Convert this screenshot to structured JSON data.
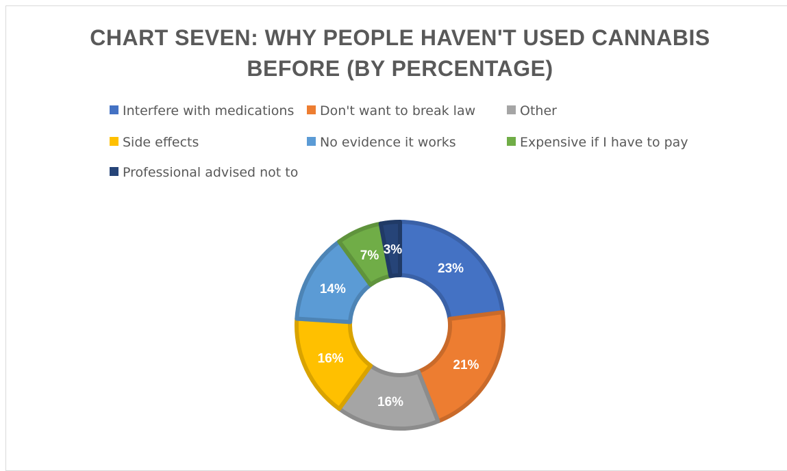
{
  "chart_data": {
    "type": "pie",
    "variant": "doughnut",
    "title_lines": [
      "CHART SEVEN: WHY PEOPLE HAVEN'T USED CANNABIS",
      "BEFORE (BY PERCENTAGE)"
    ],
    "legend_position": "top",
    "slices": [
      {
        "name": "Interfere with medications",
        "value": 23,
        "label": "23%",
        "color": "#4472c4"
      },
      {
        "name": "Don't want to break law",
        "value": 21,
        "label": "21%",
        "color": "#ed7d31"
      },
      {
        "name": "Other",
        "value": 16,
        "label": "16%",
        "color": "#a5a5a5"
      },
      {
        "name": "Side effects",
        "value": 16,
        "label": "16%",
        "color": "#ffc000"
      },
      {
        "name": "No evidence it works",
        "value": 14,
        "label": "14%",
        "color": "#5b9bd5"
      },
      {
        "name": "Expensive if I have to pay",
        "value": 7,
        "label": "7%",
        "color": "#70ad47"
      },
      {
        "name": "Professional advised not to",
        "value": 3,
        "label": "3%",
        "color": "#264478"
      }
    ]
  }
}
